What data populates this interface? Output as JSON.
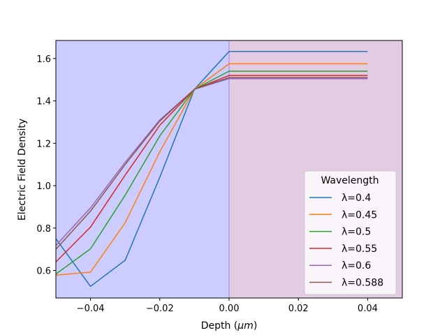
{
  "chart_data": {
    "type": "line",
    "xlabel_main": "Depth (",
    "xlabel_unit": "μm",
    "xlabel_close": ")",
    "ylabel": "Electric Field Density",
    "xlim": [
      -0.05,
      0.05
    ],
    "ylim": [
      0.47,
      1.685
    ],
    "xticks": [
      -0.04,
      -0.02,
      0.0,
      0.02,
      0.04
    ],
    "xtick_labels": [
      "−0.04",
      "−0.02",
      "0.00",
      "0.02",
      "0.04"
    ],
    "yticks": [
      0.6,
      0.8,
      1.0,
      1.2,
      1.4,
      1.6
    ],
    "ytick_labels": [
      "0.6",
      "0.8",
      "1.0",
      "1.2",
      "1.4",
      "1.6"
    ],
    "regions": [
      {
        "x_from": -0.05,
        "x_to": 0.0,
        "color": "#ccccff"
      },
      {
        "x_from": 0.0,
        "x_to": 0.05,
        "color": "#e4cbe4"
      }
    ],
    "boundary_line": {
      "x": 0.0,
      "color": "#a07fdf"
    },
    "legend_title": "Wavelength",
    "legend_placement": "lower-right",
    "series": [
      {
        "name": "λ=0.4",
        "color": "#1f77b4",
        "x": [
          -0.05,
          -0.04,
          -0.03,
          -0.02,
          -0.01,
          0.0,
          0.04
        ],
        "y": [
          0.75,
          0.525,
          0.648,
          1.04,
          1.455,
          1.633,
          1.633
        ]
      },
      {
        "name": "λ=0.45",
        "color": "#ff7f0e",
        "x": [
          -0.05,
          -0.04,
          -0.03,
          -0.02,
          -0.01,
          0.0,
          0.04
        ],
        "y": [
          0.578,
          0.592,
          0.825,
          1.16,
          1.455,
          1.575,
          1.575
        ]
      },
      {
        "name": "λ=0.5",
        "color": "#2ca02c",
        "x": [
          -0.05,
          -0.04,
          -0.03,
          -0.02,
          -0.01,
          0.0,
          0.04
        ],
        "y": [
          0.583,
          0.702,
          0.955,
          1.235,
          1.455,
          1.54,
          1.54
        ]
      },
      {
        "name": "λ=0.55",
        "color": "#d62728",
        "x": [
          -0.05,
          -0.04,
          -0.03,
          -0.02,
          -0.01,
          0.0,
          0.04
        ],
        "y": [
          0.64,
          0.805,
          1.05,
          1.285,
          1.455,
          1.52,
          1.52
        ]
      },
      {
        "name": "λ=0.6",
        "color": "#9467bd",
        "x": [
          -0.05,
          -0.04,
          -0.03,
          -0.02,
          -0.01,
          0.0,
          0.04
        ],
        "y": [
          0.718,
          0.895,
          1.11,
          1.31,
          1.455,
          1.505,
          1.505
        ]
      },
      {
        "name": "λ=0.588",
        "color": "#8c564b",
        "x": [
          -0.05,
          -0.04,
          -0.03,
          -0.02,
          -0.01,
          0.0,
          0.04
        ],
        "y": [
          0.7,
          0.88,
          1.1,
          1.305,
          1.455,
          1.51,
          1.51
        ]
      }
    ]
  }
}
